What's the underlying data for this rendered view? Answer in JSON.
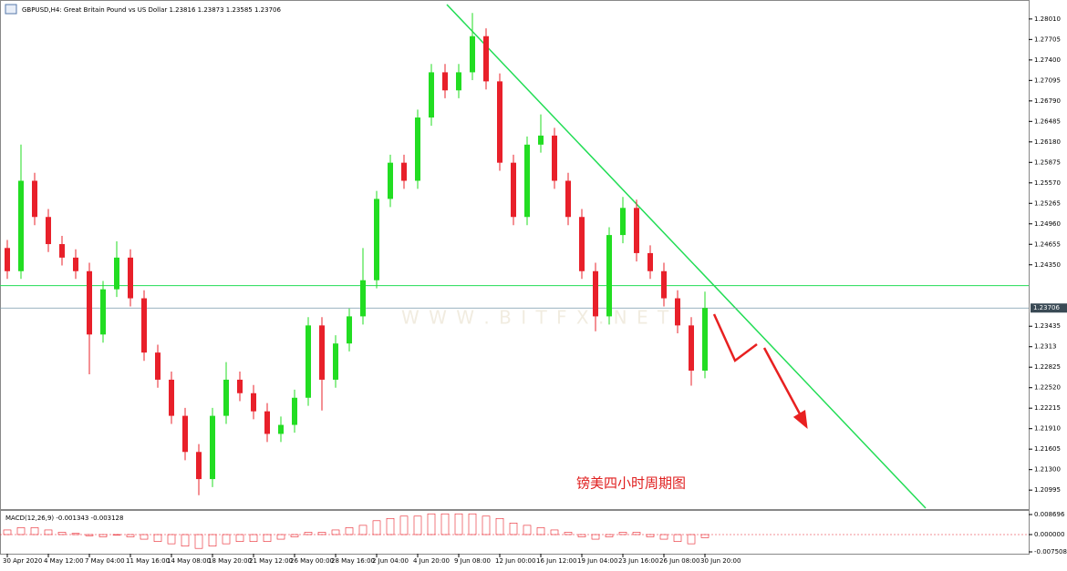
{
  "chart_data": [
    {
      "type": "candlestick",
      "title": "GBPUSD,H4:  Great Britain Pound vs US Dollar  1.23816 1.23873 1.23585 1.23706",
      "annotation": "镑美四小时周期图",
      "watermark": "W W W . B I T F X . N E T",
      "categories": [
        "30 Apr 2020",
        null,
        null,
        "4 May 12:00",
        null,
        null,
        "7 May 04:00",
        null,
        null,
        "11 May 16:00",
        null,
        null,
        "14 May 08:00",
        null,
        null,
        "18 May 20:00",
        null,
        null,
        "21 May 12:00",
        null,
        null,
        "26 May 00:00",
        null,
        null,
        "28 May 16:00",
        null,
        null,
        "2 Jun 04:00",
        null,
        null,
        "4 Jun 20:00",
        null,
        null,
        "9 Jun 08:00",
        null,
        null,
        "12 Jun 00:00",
        null,
        null,
        "16 Jun 12:00",
        null,
        null,
        "19 Jun 04:00",
        null,
        null,
        "23 Jun 16:00",
        null,
        null,
        "26 Jun 08:00",
        null,
        null,
        "30 Jun 20:00"
      ],
      "open": [
        1.246,
        1.24255,
        1.25601,
        1.25062,
        1.24658,
        1.24457,
        1.24255,
        1.23312,
        1.23985,
        1.24457,
        1.23851,
        1.23043,
        1.22639,
        1.22101,
        1.21563,
        1.21159,
        1.22101,
        1.22639,
        1.22438,
        1.22168,
        1.21832,
        1.21966,
        1.2237,
        1.23447,
        1.22639,
        1.23178,
        1.23582,
        1.2412,
        1.25331,
        1.2587,
        1.25601,
        1.26543,
        1.27216,
        1.26947,
        1.27216,
        1.27754,
        1.27081,
        1.2587,
        1.25062,
        1.26139,
        1.26274,
        1.25601,
        1.25062,
        1.24255,
        1.23582,
        1.24793,
        1.25197,
        1.24524,
        1.24255,
        1.23851,
        1.23447,
        1.22774
      ],
      "high": [
        1.2472,
        1.2614,
        1.2572,
        1.2518,
        1.2478,
        1.2458,
        1.2438,
        1.2411,
        1.247,
        1.2458,
        1.2397,
        1.2316,
        1.2276,
        1.2222,
        1.2168,
        1.2222,
        1.229,
        1.2276,
        1.2256,
        1.2229,
        1.2209,
        1.2249,
        1.2357,
        1.2357,
        1.233,
        1.237,
        1.246,
        1.2545,
        1.2599,
        1.2599,
        1.2666,
        1.2734,
        1.2734,
        1.2734,
        1.281,
        1.2787,
        1.272,
        1.2599,
        1.2626,
        1.2659,
        1.2639,
        1.2572,
        1.2518,
        1.2438,
        1.2491,
        1.2536,
        1.2532,
        1.2464,
        1.2438,
        1.2397,
        1.2357,
        1.2395
      ],
      "low": [
        1.2414,
        1.2414,
        1.2494,
        1.2454,
        1.2434,
        1.2414,
        1.2272,
        1.2319,
        1.2387,
        1.2373,
        1.2292,
        1.2252,
        1.2198,
        1.2144,
        1.2092,
        1.2104,
        1.2198,
        1.2232,
        1.2205,
        1.2171,
        1.2171,
        1.2185,
        1.2225,
        1.2218,
        1.2252,
        1.2306,
        1.2346,
        1.24,
        1.2521,
        1.2548,
        1.2548,
        1.2642,
        1.2683,
        1.2683,
        1.271,
        1.2696,
        1.2575,
        1.2494,
        1.2494,
        1.2602,
        1.2548,
        1.2494,
        1.2414,
        1.2336,
        1.2346,
        1.2467,
        1.244,
        1.2414,
        1.2373,
        1.2333,
        1.2255,
        1.2266
      ],
      "close": [
        1.24255,
        1.25601,
        1.25062,
        1.24658,
        1.24457,
        1.24255,
        1.23312,
        1.23985,
        1.24457,
        1.23851,
        1.23043,
        1.22639,
        1.22101,
        1.21563,
        1.21159,
        1.22101,
        1.22639,
        1.22438,
        1.22168,
        1.21832,
        1.21966,
        1.2237,
        1.23447,
        1.22639,
        1.23178,
        1.23582,
        1.2412,
        1.25331,
        1.2587,
        1.25601,
        1.26543,
        1.27216,
        1.26947,
        1.27216,
        1.27754,
        1.27081,
        1.2587,
        1.25062,
        1.26139,
        1.26274,
        1.25601,
        1.25062,
        1.24255,
        1.23582,
        1.24793,
        1.25197,
        1.24524,
        1.24255,
        1.23851,
        1.23447,
        1.22774,
        1.23706
      ],
      "up_color": "#22dd22",
      "down_color": "#e8202a",
      "ylim": [
        1.20726,
        1.28225
      ],
      "yticks": [
        {
          "value": 1.2801,
          "label": "1.28010"
        },
        1.27705,
        {
          "value": 1.274,
          "label": "1.27400"
        },
        1.27095,
        {
          "value": 1.2679,
          "label": "1.26790"
        },
        1.26485,
        {
          "value": 1.2618,
          "label": "1.26180"
        },
        1.25875,
        {
          "value": 1.2557,
          "label": "1.25570"
        },
        1.25265,
        {
          "value": 1.2496,
          "label": "1.24960"
        },
        1.24655,
        {
          "value": 1.2435,
          "label": "1.24350"
        },
        1.23435,
        1.2313,
        1.22825,
        {
          "value": 1.2252,
          "label": "1.22520"
        },
        1.22215,
        {
          "value": 1.2191,
          "label": "1.21910"
        },
        1.21605,
        {
          "value": 1.213,
          "label": "1.21300"
        },
        1.20995
      ],
      "current_price": 1.23706,
      "level": 1.2404,
      "level_color": "#22dd55"
    },
    {
      "type": "macd",
      "title": "MACD(12,26,9) -0.001343 -0.003128",
      "values": [
        0.002,
        0.003,
        0.003,
        0.002,
        0.001,
        0.0005,
        -0.0005,
        -0.001,
        0,
        -0.001,
        -0.002,
        -0.003,
        -0.004,
        -0.005,
        -0.006,
        -0.005,
        -0.004,
        -0.003,
        -0.003,
        -0.003,
        -0.002,
        -0.001,
        0.001,
        0.001,
        0.002,
        0.003,
        0.004,
        0.006,
        0.007,
        0.008,
        0.008,
        0.009,
        0.009,
        0.009,
        0.009,
        0.008,
        0.007,
        0.005,
        0.004,
        0.003,
        0.002,
        0.001,
        -0.001,
        -0.002,
        -0.001,
        0.001,
        0.001,
        -0.001,
        -0.002,
        -0.003,
        -0.004,
        -0.001343
      ],
      "color": "#e8202a",
      "ylim": [
        -0.00909,
        0.01067
      ],
      "yticks": [
        0.008696,
        {
          "value": 0,
          "label": "0.000000"
        },
        -0.007508
      ]
    }
  ]
}
